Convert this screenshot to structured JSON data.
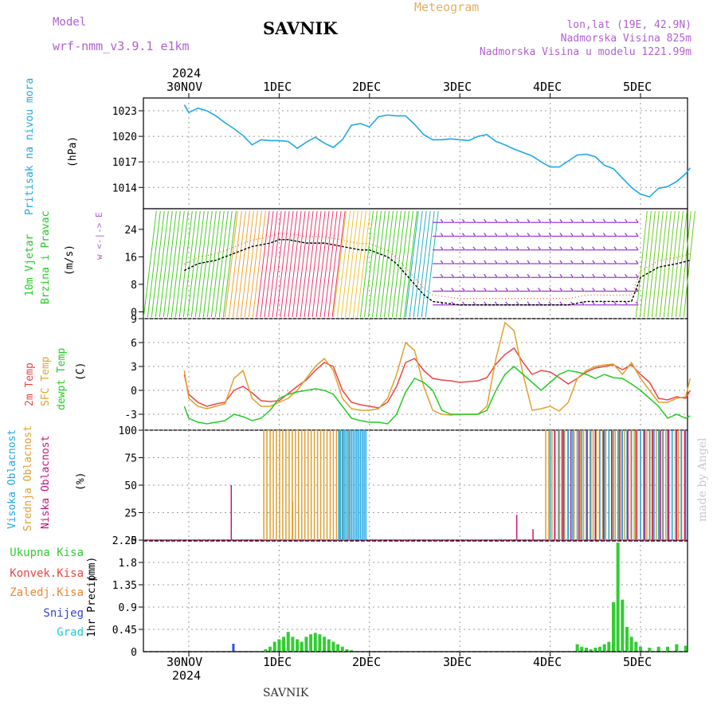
{
  "header": {
    "model_label": "Model",
    "model_name": "wrf-nmm_v3.9.1 e1km",
    "station": "SAVNIK",
    "product": "Meteogram",
    "lonlat": "lon,lat (19E, 42.9N)",
    "altitude": "Nadmorska Visina 825m",
    "model_altitude": "Nadmorska Visina u modelu 1221.99m"
  },
  "footer": {
    "station": "SAVNIK",
    "credit": "made by Angel"
  },
  "colors": {
    "pressure": "#1ea8e6",
    "wind_black": "#000000",
    "wind_dot": "#e05a2a",
    "temp2m": "#ee4444",
    "sfc": "#e0a030",
    "dewpt": "#22cc22",
    "high_cloud": "#1ea8e6",
    "mid_cloud": "#e0a030",
    "low_cloud": "#cc1177",
    "total_precip": "#33cc33",
    "snow": "#3355cc",
    "grid": "#9a9a9a"
  },
  "time_axis": {
    "year_top": "2024",
    "year_bottom": "2024",
    "labels": [
      "30NOV",
      "1DEC",
      "2DEC",
      "3DEC",
      "4DEC",
      "5DEC"
    ]
  },
  "chart_data": [
    {
      "type": "line",
      "panel": "pressure",
      "ylabel_left": "Pritisak na nivou mora",
      "unit": "(hPa)",
      "yticks": [
        1014,
        1017,
        1020,
        1023
      ],
      "ylim": [
        1011.5,
        1024.5
      ],
      "x_days": [
        0.95,
        1.0,
        1.1,
        1.2,
        1.3,
        1.4,
        1.5,
        1.6,
        1.7,
        1.8,
        1.9,
        2.0,
        2.1,
        2.2,
        2.3,
        2.4,
        2.5,
        2.6,
        2.7,
        2.8,
        2.9,
        3.0,
        3.1,
        3.2,
        3.3,
        3.4,
        3.5,
        3.6,
        3.7,
        3.8,
        3.9,
        4.0,
        4.1,
        4.2,
        4.3,
        4.4,
        4.5,
        4.6,
        4.7,
        4.8,
        4.9,
        5.0,
        5.1,
        5.2,
        5.3,
        5.4,
        5.5,
        5.6,
        5.7,
        5.8,
        5.9,
        6.0,
        6.1,
        6.2,
        6.3,
        6.4,
        6.5,
        6.55
      ],
      "series": [
        {
          "values": [
            1023.7,
            1022.8,
            1023.3,
            1023.0,
            1022.4,
            1021.6,
            1020.9,
            1020.1,
            1019.0,
            1019.6,
            1019.5,
            1019.5,
            1019.4,
            1018.6,
            1019.3,
            1019.9,
            1019.2,
            1018.7,
            1019.6,
            1021.3,
            1021.5,
            1021.1,
            1022.3,
            1022.5,
            1022.4,
            1022.4,
            1021.4,
            1020.2,
            1019.6,
            1019.6,
            1019.7,
            1019.6,
            1019.5,
            1020.0,
            1020.2,
            1019.4,
            1019.0,
            1018.5,
            1018.1,
            1017.7,
            1017.0,
            1016.4,
            1016.4,
            1017.1,
            1017.8,
            1017.9,
            1017.6,
            1016.6,
            1016.2,
            1015.1,
            1014.0,
            1013.2,
            1012.9,
            1013.9,
            1014.1,
            1014.7,
            1015.6,
            1016.3
          ]
        }
      ]
    },
    {
      "type": "line",
      "panel": "wind",
      "ylabel_left_1": "10m Vjetar",
      "ylabel_left_2": "Brzina i Pravac",
      "unit": "(m/s)",
      "compass": "w <-|-> E",
      "yticks": [
        0,
        8,
        16,
        24
      ],
      "ylim": [
        -2,
        30
      ],
      "x_days": [
        0.95,
        1.1,
        1.3,
        1.5,
        1.7,
        1.9,
        2.0,
        2.1,
        2.3,
        2.5,
        2.7,
        2.9,
        3.0,
        3.1,
        3.2,
        3.3,
        3.4,
        3.5,
        3.6,
        3.7,
        4.0,
        4.2,
        4.4,
        4.6,
        4.8,
        5.0,
        5.2,
        5.4,
        5.6,
        5.8,
        5.9,
        6.0,
        6.2,
        6.4,
        6.55
      ],
      "series": [
        {
          "values": [
            12,
            14,
            15,
            17,
            19,
            20,
            21,
            21,
            20,
            20,
            19,
            18,
            18,
            17,
            16,
            14,
            11,
            8,
            5,
            3,
            2,
            2,
            2,
            2,
            2,
            2,
            2,
            3,
            3,
            3,
            3,
            10,
            13,
            14,
            15
          ]
        }
      ]
    },
    {
      "type": "line",
      "panel": "temperature",
      "ylabel_left_1": "2m Temp",
      "ylabel_left_2": "SFC Temp",
      "ylabel_left_3": "dewpt Temp",
      "unit": "(C)",
      "yticks": [
        -3,
        0,
        3,
        6,
        9
      ],
      "ylim": [
        -5,
        9
      ],
      "x_days": [
        0.95,
        1.0,
        1.1,
        1.2,
        1.3,
        1.4,
        1.5,
        1.6,
        1.7,
        1.8,
        1.9,
        2.0,
        2.1,
        2.2,
        2.3,
        2.4,
        2.5,
        2.6,
        2.7,
        2.8,
        2.9,
        3.0,
        3.1,
        3.2,
        3.3,
        3.4,
        3.5,
        3.6,
        3.7,
        3.8,
        3.9,
        4.0,
        4.1,
        4.2,
        4.3,
        4.4,
        4.5,
        4.6,
        4.7,
        4.8,
        4.9,
        5.0,
        5.1,
        5.2,
        5.3,
        5.4,
        5.5,
        5.6,
        5.7,
        5.8,
        5.9,
        6.0,
        6.1,
        6.2,
        6.3,
        6.4,
        6.5,
        6.55
      ],
      "series": [
        {
          "name": "2m Temp",
          "values": [
            2.0,
            -0.5,
            -1.5,
            -2.0,
            -1.7,
            -1.5,
            0.0,
            0.5,
            -0.3,
            -1.3,
            -1.4,
            -1.3,
            -0.4,
            0.5,
            1.3,
            2.5,
            3.5,
            3.0,
            0.0,
            -1.5,
            -1.8,
            -2.0,
            -2.2,
            -1.5,
            0.5,
            3.5,
            4.0,
            2.5,
            1.5,
            1.3,
            1.2,
            1.0,
            1.1,
            1.2,
            1.6,
            3.3,
            4.5,
            5.3,
            3.5,
            2.0,
            2.5,
            2.3,
            1.6,
            0.8,
            1.5,
            2.3,
            2.8,
            3.0,
            3.2,
            2.6,
            3.2,
            2.0,
            1.0,
            -1.0,
            -1.2,
            -0.8,
            -1.0,
            0.0
          ]
        },
        {
          "name": "SFC Temp",
          "values": [
            2.5,
            -1.0,
            -2.0,
            -2.3,
            -2.0,
            -1.7,
            1.5,
            2.5,
            -1.0,
            -2.0,
            -2.0,
            -1.5,
            -1.0,
            0.0,
            1.5,
            3.0,
            4.0,
            2.5,
            -1.0,
            -2.3,
            -2.5,
            -2.5,
            -2.3,
            -1.0,
            2.0,
            6.0,
            5.0,
            0.5,
            -2.5,
            -3.0,
            -3.1,
            -3.0,
            -3.0,
            -3.0,
            -2.0,
            4.0,
            8.5,
            7.5,
            2.0,
            -2.5,
            -2.3,
            -2.0,
            -2.6,
            -1.5,
            1.5,
            2.5,
            3.0,
            3.2,
            3.3,
            2.0,
            3.5,
            1.5,
            0.0,
            -1.5,
            -1.5,
            -1.0,
            -0.8,
            1.5
          ]
        },
        {
          "name": "dewpt Temp",
          "values": [
            -2.0,
            -3.5,
            -4.0,
            -4.2,
            -4.0,
            -3.8,
            -3.0,
            -3.3,
            -3.8,
            -3.5,
            -2.5,
            -1.0,
            -0.5,
            -0.2,
            0.0,
            0.2,
            0.0,
            -0.5,
            -2.0,
            -3.5,
            -3.8,
            -4.0,
            -4.0,
            -4.2,
            -3.0,
            -0.2,
            1.5,
            1.0,
            0.0,
            -2.5,
            -3.0,
            -3.0,
            -3.0,
            -3.0,
            -2.5,
            0.0,
            2.0,
            3.0,
            2.0,
            1.0,
            0.0,
            1.0,
            2.0,
            2.5,
            2.3,
            2.0,
            1.5,
            2.0,
            1.6,
            1.5,
            0.8,
            0.0,
            -1.0,
            -2.0,
            -3.5,
            -3.0,
            -3.5,
            -3.2
          ]
        }
      ]
    },
    {
      "type": "bar",
      "panel": "clouds",
      "ylabel_left_1": "Visoka Oblacnost",
      "ylabel_left_2": "Srednja Oblacnost",
      "ylabel_left_3": "Niska Oblacnost",
      "unit": "(%)",
      "yticks": [
        0,
        25,
        50,
        75,
        100
      ],
      "ylim": [
        0,
        100
      ],
      "segments": [
        {
          "name": "Srednja Oblacnost",
          "from_day": 1.83,
          "to_day": 2.8,
          "value": 100,
          "step_days": 0.035
        },
        {
          "name": "Visoka Oblacnost",
          "from_day": 2.66,
          "to_day": 2.98,
          "value": 100,
          "step_days": 0.02
        },
        {
          "name": "Srednja Oblacnost",
          "from_day": 4.95,
          "to_day": 6.55,
          "value": 100,
          "step_days": 0.035
        },
        {
          "name": "Visoka Oblacnost",
          "from_day": 5.0,
          "to_day": 6.55,
          "value": 100,
          "step_days": 0.05
        },
        {
          "name": "Niska Oblacnost",
          "from_day": 5.05,
          "to_day": 6.55,
          "value": 100,
          "step_days": 0.09
        }
      ],
      "singles": [
        {
          "name": "Niska Oblacnost",
          "day": 1.47,
          "value": 50
        },
        {
          "name": "Niska Oblacnost",
          "day": 4.63,
          "value": 23
        },
        {
          "name": "Niska Oblacnost",
          "day": 4.81,
          "value": 10
        },
        {
          "name": "Srednja Oblacnost",
          "day": 2.15,
          "value": 35
        }
      ]
    },
    {
      "type": "bar",
      "panel": "precip",
      "ylabel_left": "1hr Precip",
      "unit": "(mm)",
      "legend": [
        "Ukupna Kisa",
        "Konvek.Kisa",
        "Zaledj.Kisa",
        "Snijeg",
        "Grad"
      ],
      "legend_colors": [
        "#33cc33",
        "#ee4444",
        "#ee8833",
        "#3344cc",
        "#22cccc"
      ],
      "yticks": [
        0.45,
        0.9,
        1.35,
        1.8,
        2.25
      ],
      "ylim": [
        0,
        2.25
      ],
      "x_days": [
        1.85,
        1.9,
        1.95,
        2.0,
        2.05,
        2.1,
        2.15,
        2.2,
        2.25,
        2.3,
        2.35,
        2.4,
        2.45,
        2.5,
        2.55,
        2.6,
        2.65,
        2.7,
        2.75,
        2.8,
        5.3,
        5.35,
        5.4,
        5.45,
        5.5,
        5.55,
        5.6,
        5.65,
        5.7,
        5.75,
        5.8,
        5.85,
        5.9,
        5.95,
        6.0,
        6.1,
        6.2,
        6.3,
        6.4,
        6.5
      ],
      "values": [
        0.05,
        0.1,
        0.2,
        0.25,
        0.3,
        0.4,
        0.3,
        0.25,
        0.2,
        0.3,
        0.35,
        0.38,
        0.35,
        0.3,
        0.25,
        0.2,
        0.15,
        0.1,
        0.05,
        0.03,
        0.15,
        0.1,
        0.08,
        0.05,
        0.08,
        0.1,
        0.15,
        0.2,
        1.0,
        2.2,
        1.05,
        0.5,
        0.3,
        0.2,
        0.1,
        0.08,
        0.1,
        0.1,
        0.15,
        0.12
      ]
    }
  ]
}
